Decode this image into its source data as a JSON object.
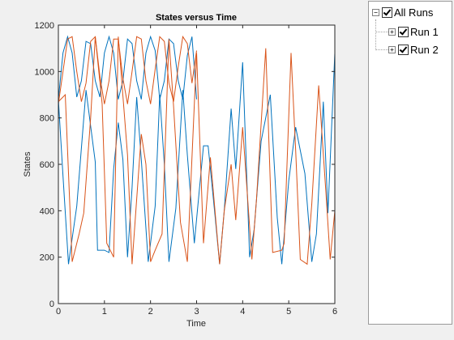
{
  "chart_data": {
    "type": "line",
    "title": "States versus Time",
    "xlabel": "Time",
    "ylabel": "States",
    "xlim": [
      0,
      6
    ],
    "ylim": [
      0,
      1200
    ],
    "xticks": [
      "0",
      "1",
      "2",
      "3",
      "4",
      "5",
      "6"
    ],
    "yticks": [
      "0",
      "200",
      "400",
      "600",
      "800",
      "1000",
      "1200"
    ],
    "grid": false,
    "series": [
      {
        "color": "#0072bd",
        "x": [
          0,
          0.1,
          0.2,
          0.3,
          0.4,
          0.5,
          0.6,
          0.7,
          0.8,
          0.9,
          1.0,
          1.1,
          1.2,
          1.3,
          1.4,
          1.5,
          1.6,
          1.7,
          1.8,
          1.9,
          2.0,
          2.1,
          2.2,
          2.3,
          2.4,
          2.5,
          2.6,
          2.7,
          2.8,
          2.9,
          3.0
        ],
        "values": [
          880,
          1080,
          1150,
          1080,
          890,
          960,
          1130,
          1120,
          960,
          890,
          1080,
          1150,
          1080,
          880,
          960,
          1140,
          1120,
          960,
          880,
          1080,
          1150,
          1090,
          880,
          960,
          1140,
          1120,
          960,
          880,
          1070,
          1150,
          880
        ]
      },
      {
        "color": "#d95319",
        "x": [
          0,
          0.1,
          0.2,
          0.3,
          0.4,
          0.5,
          0.6,
          0.7,
          0.8,
          0.9,
          1.0,
          1.1,
          1.2,
          1.3,
          1.4,
          1.5,
          1.6,
          1.7,
          1.8,
          1.9,
          2.0,
          2.1,
          2.2,
          2.3,
          2.4,
          2.5,
          2.6,
          2.7,
          2.8,
          2.9,
          3.0
        ],
        "values": [
          860,
          1000,
          1140,
          1150,
          1000,
          870,
          950,
          1130,
          1150,
          980,
          860,
          960,
          1140,
          1140,
          970,
          860,
          1000,
          1150,
          1140,
          960,
          860,
          1010,
          1150,
          1130,
          950,
          870,
          1020,
          1150,
          1120,
          950,
          1090
        ]
      },
      {
        "color": "#0072bd",
        "x": [
          0,
          0.1,
          0.22,
          0.4,
          0.6,
          0.8,
          0.85,
          1.0,
          1.1,
          1.2,
          1.3,
          1.4,
          1.5,
          1.6,
          1.7,
          1.8,
          1.95,
          2.1,
          2.2,
          2.3,
          2.4,
          2.55,
          2.7,
          2.8,
          2.95,
          3.15,
          3.25,
          3.4,
          3.5,
          3.6,
          3.75,
          3.85,
          4.0,
          4.15,
          4.25,
          4.4,
          4.6,
          4.75,
          4.85,
          5.0,
          5.15,
          5.35,
          5.5,
          5.6,
          5.75,
          5.85,
          6.0
        ],
        "values": [
          880,
          550,
          170,
          420,
          920,
          610,
          230,
          230,
          220,
          580,
          780,
          620,
          200,
          500,
          890,
          620,
          180,
          420,
          900,
          600,
          180,
          410,
          920,
          640,
          260,
          680,
          680,
          380,
          170,
          400,
          840,
          580,
          1040,
          200,
          320,
          700,
          900,
          370,
          170,
          530,
          760,
          560,
          180,
          300,
          870,
          390,
          1080
        ]
      },
      {
        "color": "#d95319",
        "x": [
          0,
          0.15,
          0.3,
          0.45,
          0.55,
          0.7,
          0.8,
          0.95,
          1.05,
          1.2,
          1.3,
          1.5,
          1.6,
          1.8,
          1.9,
          2.0,
          2.1,
          2.25,
          2.4,
          2.5,
          2.65,
          2.8,
          3.0,
          3.15,
          3.3,
          3.5,
          3.6,
          3.75,
          3.85,
          4.0,
          4.2,
          4.3,
          4.5,
          4.65,
          4.85,
          4.9,
          5.05,
          5.15,
          5.25,
          5.4,
          5.5,
          5.65,
          5.8,
          5.9,
          6.0
        ],
        "values": [
          870,
          900,
          180,
          300,
          390,
          800,
          1150,
          860,
          260,
          200,
          1150,
          640,
          170,
          730,
          600,
          180,
          230,
          300,
          1140,
          850,
          350,
          180,
          1080,
          260,
          630,
          170,
          400,
          600,
          360,
          760,
          190,
          450,
          1100,
          220,
          230,
          260,
          1080,
          660,
          190,
          170,
          430,
          940,
          500,
          190,
          400
        ]
      }
    ]
  },
  "tree": {
    "root_label": "All Runs",
    "items": [
      {
        "label": "Run 1",
        "expander": "+"
      },
      {
        "label": "Run 2",
        "expander": "+"
      }
    ],
    "root_expander": "−"
  }
}
